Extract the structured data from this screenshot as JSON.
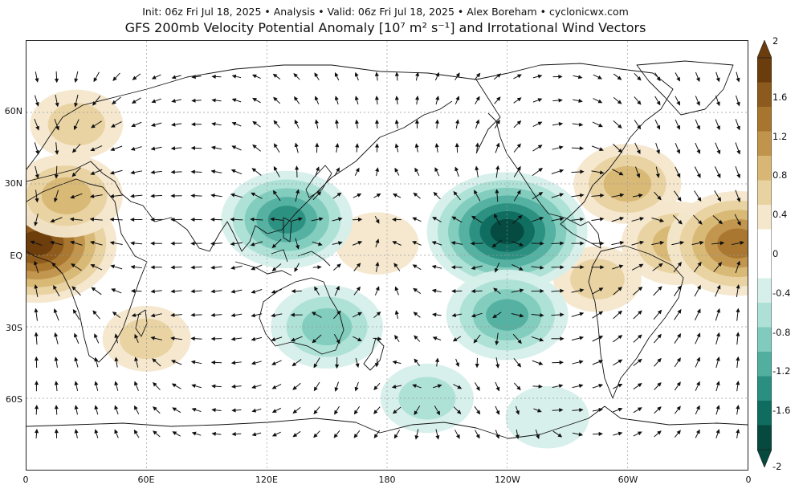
{
  "header": {
    "subtitle": "Init: 06z Fri Jul 18, 2025 • Analysis • Valid: 06z Fri Jul 18, 2025 • Alex Boreham • cyclonicwx.com",
    "title": "GFS 200mb Velocity Potential Anomaly [10⁷ m² s⁻¹] and Irrotational Wind Vectors"
  },
  "axes": {
    "lat_labels": [
      "60N",
      "30N",
      "EQ",
      "30S",
      "60S"
    ],
    "lon_labels": [
      "0",
      "60E",
      "120E",
      "180",
      "120W",
      "60W",
      "0"
    ]
  },
  "colorbar": {
    "labels": [
      "2",
      "1.6",
      "1.2",
      "0.8",
      "0.4",
      "0",
      "-0.4",
      "-0.8",
      "-1.2",
      "-1.6",
      "-2"
    ],
    "colors": [
      "#6b3d0c",
      "#8c5a1c",
      "#a8752e",
      "#c1944c",
      "#d8b774",
      "#e8d2a0",
      "#f4e7cc",
      "#ffffff",
      "#ffffff",
      "#d6efea",
      "#ade0d6",
      "#80cbbd",
      "#52afa0",
      "#2a8f80",
      "#0f6d5f",
      "#05493f"
    ]
  },
  "fields": {
    "positive": [
      {
        "lon": 5,
        "lat": 5,
        "level": 2.0
      },
      {
        "lon": 20,
        "lat": 25,
        "level": 1.0
      },
      {
        "lon": 25,
        "lat": 55,
        "level": 0.6
      },
      {
        "lon": 60,
        "lat": -35,
        "level": 0.5
      },
      {
        "lon": 175,
        "lat": 5,
        "level": 0.4
      },
      {
        "lon": 300,
        "lat": 30,
        "level": 0.9
      },
      {
        "lon": 325,
        "lat": 5,
        "level": 1.0
      },
      {
        "lon": 355,
        "lat": 5,
        "level": 1.6
      },
      {
        "lon": 285,
        "lat": -10,
        "level": 0.5
      }
    ],
    "negative": [
      {
        "lon": 130,
        "lat": 15,
        "level": -1.4
      },
      {
        "lon": 240,
        "lat": 10,
        "level": -2.0
      },
      {
        "lon": 240,
        "lat": -25,
        "level": -1.2
      },
      {
        "lon": 150,
        "lat": -30,
        "level": -1.0
      },
      {
        "lon": 200,
        "lat": -60,
        "level": -0.6
      },
      {
        "lon": 260,
        "lat": -68,
        "level": -0.4
      }
    ]
  }
}
